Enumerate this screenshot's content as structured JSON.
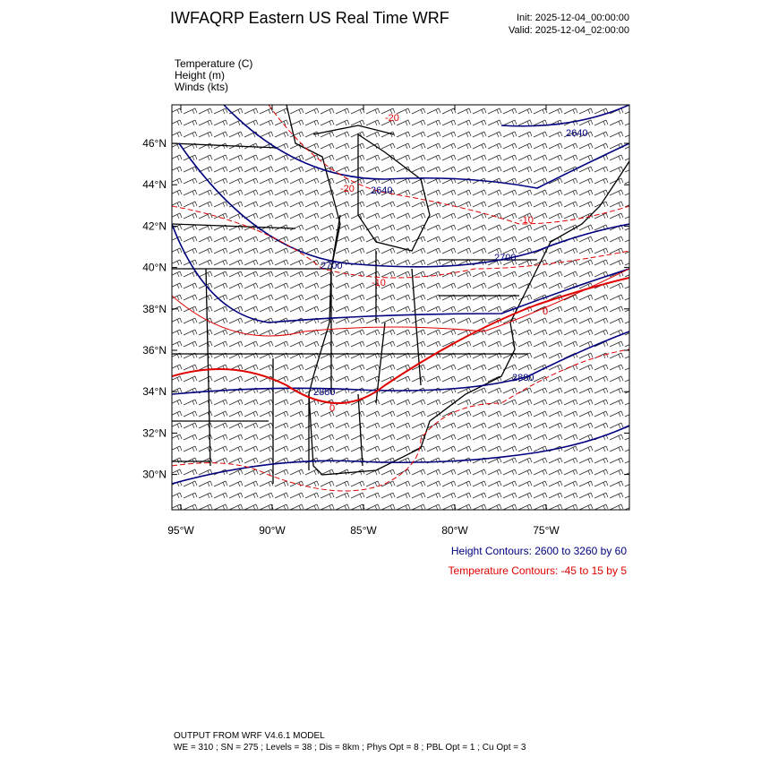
{
  "header": {
    "title": "IWFAQRP Eastern US Real Time WRF",
    "init": "Init: 2025-12-04_00:00:00",
    "valid": "Valid: 2025-12-04_02:00:00"
  },
  "fields": [
    "Temperature   (C)",
    "Height   (m)",
    "Winds   (kts)"
  ],
  "map": {
    "lon_ticks": [
      {
        "value": -95,
        "label": "95°W"
      },
      {
        "value": -90,
        "label": "90°W"
      },
      {
        "value": -85,
        "label": "85°W"
      },
      {
        "value": -80,
        "label": "80°W"
      },
      {
        "value": -75,
        "label": "75°W"
      }
    ],
    "lat_ticks": [
      {
        "value": 46,
        "label": "46°N"
      },
      {
        "value": 44,
        "label": "44°N"
      },
      {
        "value": 42,
        "label": "42°N"
      },
      {
        "value": 40,
        "label": "40°N"
      },
      {
        "value": 38,
        "label": "38°N"
      },
      {
        "value": 36,
        "label": "36°N"
      },
      {
        "value": 34,
        "label": "34°N"
      },
      {
        "value": 32,
        "label": "32°N"
      },
      {
        "value": 30,
        "label": "30°N"
      }
    ]
  },
  "contour_labels": {
    "height": [
      "2640",
      "2640",
      "2700",
      "2700",
      "2880",
      "2880"
    ],
    "temperature": [
      "-20",
      "-20",
      "-10",
      "-10",
      "0",
      "0"
    ]
  },
  "legend": {
    "height": "Height Contours: 2600 to 3260 by 60",
    "temperature": "Temperature Contours: -45 to 15 by 5"
  },
  "footer": [
    "OUTPUT FROM WRF V4.6.1 MODEL",
    "WE = 310 ; SN = 275 ; Levels = 38 ; Dis = 8km ; Phys Opt = 8 ; PBL Opt = 1 ; Cu Opt = 3"
  ]
}
